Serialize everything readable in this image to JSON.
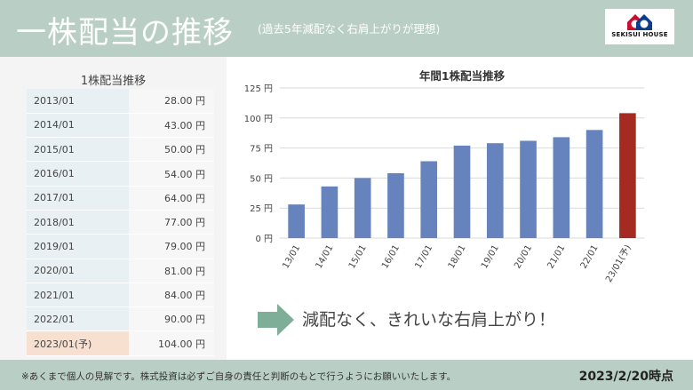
{
  "header": {
    "title": "一株配当の推移",
    "subtitle": "(過去5年減配なく右肩上がりが理想)",
    "logo_text": "SEKISUI HOUSE"
  },
  "table": {
    "title": "1株配当推移",
    "rows": [
      {
        "date": "2013/01",
        "value": "28.00 円"
      },
      {
        "date": "2014/01",
        "value": "43.00 円"
      },
      {
        "date": "2015/01",
        "value": "50.00 円"
      },
      {
        "date": "2016/01",
        "value": "54.00 円"
      },
      {
        "date": "2017/01",
        "value": "64.00 円"
      },
      {
        "date": "2018/01",
        "value": "77.00 円"
      },
      {
        "date": "2019/01",
        "value": "79.00 円"
      },
      {
        "date": "2020/01",
        "value": "81.00 円"
      },
      {
        "date": "2021/01",
        "value": "84.00 円"
      },
      {
        "date": "2022/01",
        "value": "90.00 円"
      },
      {
        "date": "2023/01(予)",
        "value": "104.00 円"
      }
    ]
  },
  "chart_data": {
    "type": "bar",
    "title": "年間1株配当推移",
    "categories": [
      "13/01",
      "14/01",
      "15/01",
      "16/01",
      "17/01",
      "18/01",
      "19/01",
      "20/01",
      "21/01",
      "22/01",
      "23/01(予)"
    ],
    "values": [
      28,
      43,
      50,
      54,
      64,
      77,
      79,
      81,
      84,
      90,
      104
    ],
    "ylim": [
      0,
      125
    ],
    "yticks": [
      0,
      25,
      50,
      75,
      100,
      125
    ],
    "ytick_labels": [
      "0 円",
      "25 円",
      "50 円",
      "75 円",
      "100 円",
      "125 円"
    ],
    "grid": true,
    "colors": {
      "bar": "#6683bd",
      "highlight": "#a52a22"
    },
    "highlight_index": 10
  },
  "comment": "減配なく、きれいな右肩上がり！",
  "colors": {
    "header_bg": "#b9cfc5",
    "arrow": "#7fae98"
  },
  "footer": {
    "note": "※あくまで個人の見解です。株式投資は必ずご自身の責任と判断のもとで行うようにお願いいたします。",
    "date": "2023/2/20時点"
  }
}
